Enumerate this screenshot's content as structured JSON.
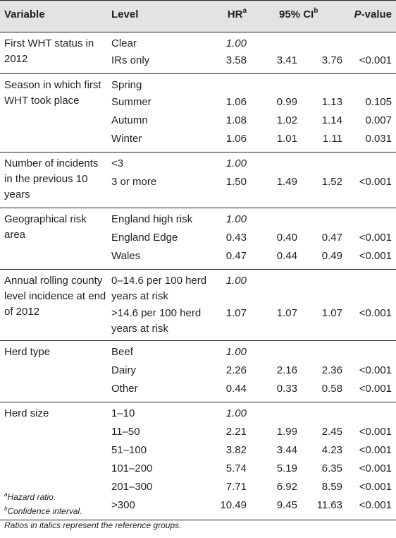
{
  "header": {
    "variable": "Variable",
    "level": "Level",
    "hr": "HR",
    "hr_sup": "a",
    "ci": "95% CI",
    "ci_sup": "b",
    "p_italic": "P",
    "p_rest": "-value"
  },
  "groups": [
    {
      "label": "First WHT status in 2012",
      "rows": [
        {
          "level": "Clear",
          "hr": "1.00",
          "ref": true,
          "cil": "",
          "ciu": "",
          "p": ""
        },
        {
          "level": "IRs only",
          "hr": "3.58",
          "ref": false,
          "cil": "3.41",
          "ciu": "3.76",
          "p": "<0.001"
        }
      ]
    },
    {
      "label": "Season in which first WHT took place",
      "rows": [
        {
          "level": "Spring",
          "hr": "",
          "ref": false,
          "cil": "",
          "ciu": "",
          "p": ""
        },
        {
          "level": "Summer",
          "hr": "1.06",
          "ref": false,
          "cil": "0.99",
          "ciu": "1.13",
          "p": "0.105"
        },
        {
          "level": "Autumn",
          "hr": "1.08",
          "ref": false,
          "cil": "1.02",
          "ciu": "1.14",
          "p": "0.007"
        },
        {
          "level": "Winter",
          "hr": "1.06",
          "ref": false,
          "cil": "1.01",
          "ciu": "1.11",
          "p": "0.031"
        }
      ]
    },
    {
      "label": "Number of incidents in the previous 10 years",
      "rows": [
        {
          "level": "<3",
          "hr": "1.00",
          "ref": true,
          "cil": "",
          "ciu": "",
          "p": ""
        },
        {
          "level": "3 or more",
          "hr": "1.50",
          "ref": false,
          "cil": "1.49",
          "ciu": "1.52",
          "p": "<0.001"
        }
      ]
    },
    {
      "label": "Geographical risk area",
      "rows": [
        {
          "level": "England high risk",
          "hr": "1.00",
          "ref": true,
          "cil": "",
          "ciu": "",
          "p": ""
        },
        {
          "level": "England Edge",
          "hr": "0.43",
          "ref": false,
          "cil": "0.40",
          "ciu": "0.47",
          "p": "<0.001"
        },
        {
          "level": "Wales",
          "hr": "0.47",
          "ref": false,
          "cil": "0.44",
          "ciu": "0.49",
          "p": "<0.001"
        }
      ]
    },
    {
      "label": "Annual rolling county level incidence at end of 2012",
      "rows": [
        {
          "level": "0–14.6 per 100 herd years at risk",
          "hr": "1.00",
          "ref": true,
          "cil": "",
          "ciu": "",
          "p": ""
        },
        {
          "level": ">14.6 per 100 herd years at risk",
          "hr": "1.07",
          "ref": false,
          "cil": "1.07",
          "ciu": "1.07",
          "p": "<0.001"
        }
      ]
    },
    {
      "label": "Herd type",
      "rows": [
        {
          "level": "Beef",
          "hr": "1.00",
          "ref": true,
          "cil": "",
          "ciu": "",
          "p": ""
        },
        {
          "level": "Dairy",
          "hr": "2.26",
          "ref": false,
          "cil": "2.16",
          "ciu": "2.36",
          "p": "<0.001"
        },
        {
          "level": "Other",
          "hr": "0.44",
          "ref": false,
          "cil": "0.33",
          "ciu": "0.58",
          "p": "<0.001"
        }
      ]
    },
    {
      "label": "Herd size",
      "rows": [
        {
          "level": "1–10",
          "hr": "1.00",
          "ref": true,
          "cil": "",
          "ciu": "",
          "p": ""
        },
        {
          "level": "11–50",
          "hr": "2.21",
          "ref": false,
          "cil": "1.99",
          "ciu": "2.45",
          "p": "<0.001"
        },
        {
          "level": "51–100",
          "hr": "3.82",
          "ref": false,
          "cil": "3.44",
          "ciu": "4.23",
          "p": "<0.001"
        },
        {
          "level": "101–200",
          "hr": "5.74",
          "ref": false,
          "cil": "5.19",
          "ciu": "6.35",
          "p": "<0.001"
        },
        {
          "level": "201–300",
          "hr": "7.71",
          "ref": false,
          "cil": "6.92",
          "ciu": "8.59",
          "p": "<0.001"
        },
        {
          "level": ">300",
          "hr": "10.49",
          "ref": false,
          "cil": "9.45",
          "ciu": "11.63",
          "p": "<0.001"
        }
      ]
    }
  ],
  "footnotes": {
    "a_sup": "a",
    "a_text": "Hazard ratio.",
    "b_sup": "b",
    "b_text": "Confidence interval.",
    "note": "Ratios in italics represent the reference groups."
  }
}
